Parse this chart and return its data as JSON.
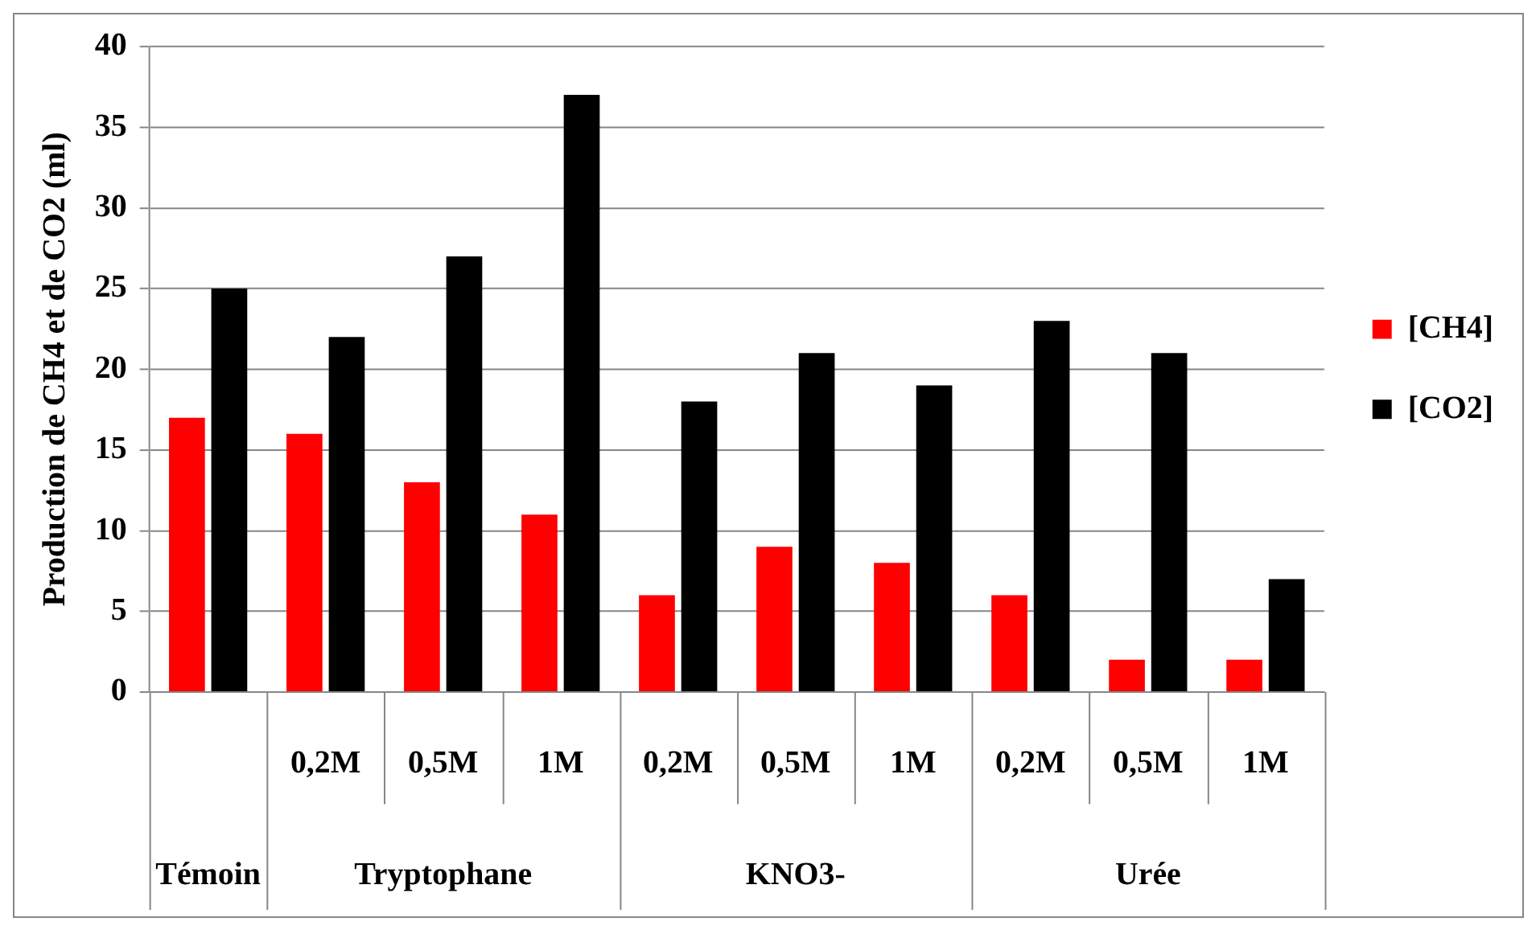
{
  "chart_data": {
    "type": "bar",
    "ylabel": "Production de CH4 et de CO2 (ml)",
    "categories": [
      null,
      "0,2M",
      "0,5M",
      "1M",
      "0,2M",
      "0,5M",
      "1M",
      "0,2M",
      "0,5M",
      "1M"
    ],
    "annotations": [
      "Témoin",
      "Tryptophane",
      "KNO3-",
      "Urée"
    ],
    "series": [
      {
        "name": "[CH4]",
        "color": "#ff0000",
        "values": [
          17,
          16,
          13,
          11,
          6,
          9,
          8,
          6,
          2,
          2
        ]
      },
      {
        "name": "[CO2]",
        "color": "#000000",
        "values": [
          25,
          22,
          27,
          37,
          18,
          21,
          19,
          23,
          21,
          7
        ]
      }
    ],
    "ylim": [
      0,
      40
    ],
    "yticks": [
      0,
      5,
      10,
      15,
      20,
      25,
      30,
      35,
      40
    ],
    "grid": "y",
    "legend": "right"
  }
}
